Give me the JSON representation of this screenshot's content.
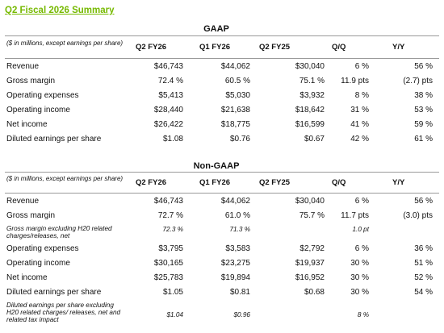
{
  "title": "Q2 Fiscal 2026 Summary",
  "gaap": {
    "heading": "GAAP",
    "note": "($ in millions, except earnings per share)",
    "headers": [
      "Q2 FY26",
      "Q1 FY26",
      "Q2 FY25",
      "Q/Q",
      "Y/Y"
    ],
    "rows": [
      {
        "label": "Revenue",
        "v": [
          "$46,743",
          "$44,062",
          "$30,040",
          "6 %",
          "56 %"
        ]
      },
      {
        "label": "Gross margin",
        "v": [
          "72.4 %",
          "60.5 %",
          "75.1 %",
          "11.9 pts",
          "(2.7) pts"
        ]
      },
      {
        "label": "Operating expenses",
        "v": [
          "$5,413",
          "$5,030",
          "$3,932",
          "8 %",
          "38 %"
        ]
      },
      {
        "label": "Operating income",
        "v": [
          "$28,440",
          "$21,638",
          "$18,642",
          "31 %",
          "53 %"
        ]
      },
      {
        "label": "Net income",
        "v": [
          "$26,422",
          "$18,775",
          "$16,599",
          "41 %",
          "59 %"
        ]
      },
      {
        "label": "Diluted earnings per share",
        "v": [
          "$1.08",
          "$0.76",
          "$0.67",
          "42 %",
          "61 %"
        ]
      }
    ]
  },
  "nongaap": {
    "heading": "Non-GAAP",
    "note": "($ in millions, except earnings per share)",
    "headers": [
      "Q2 FY26",
      "Q1 FY26",
      "Q2 FY25",
      "Q/Q",
      "Y/Y"
    ],
    "rows": [
      {
        "label": "Revenue",
        "v": [
          "$46,743",
          "$44,062",
          "$30,040",
          "6 %",
          "56 %"
        ]
      },
      {
        "label": "Gross margin",
        "v": [
          "72.7 %",
          "61.0 %",
          "75.7 %",
          "11.7 pts",
          "(3.0) pts"
        ]
      },
      {
        "label": "Gross margin excluding H20 related charges/releases, net",
        "v": [
          "72.3 %",
          "71.3 %",
          "",
          "1.0 pt",
          ""
        ],
        "italic": true
      },
      {
        "label": "Operating expenses",
        "v": [
          "$3,795",
          "$3,583",
          "$2,792",
          "6 %",
          "36 %"
        ]
      },
      {
        "label": "Operating income",
        "v": [
          "$30,165",
          "$23,275",
          "$19,937",
          "30 %",
          "51 %"
        ]
      },
      {
        "label": "Net income",
        "v": [
          "$25,783",
          "$19,894",
          "$16,952",
          "30 %",
          "52 %"
        ]
      },
      {
        "label": "Diluted earnings per share",
        "v": [
          "$1.05",
          "$0.81",
          "$0.68",
          "30 %",
          "54 %"
        ]
      },
      {
        "label": "Diluted earnings per share excluding H20 related charges/ releases, net and related tax impact",
        "v": [
          "$1.04",
          "$0.96",
          "",
          "8 %",
          ""
        ],
        "italic": true
      }
    ]
  }
}
